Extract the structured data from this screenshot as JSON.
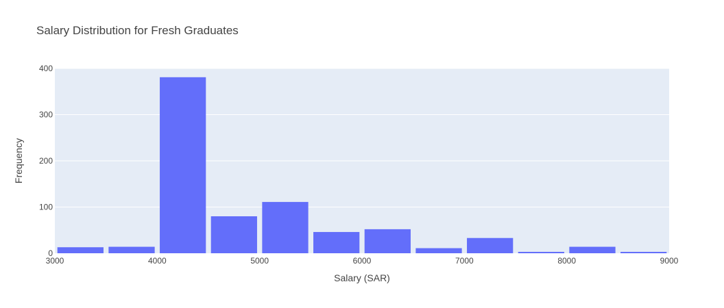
{
  "chart_data": {
    "type": "bar",
    "title": "Salary Distribution for Fresh Graduates",
    "xlabel": "Salary (SAR)",
    "ylabel": "Frequency",
    "bin_width": 500,
    "xlim": [
      3000,
      9000
    ],
    "ylim": [
      0,
      400
    ],
    "x_ticks": [
      3000,
      4000,
      5000,
      6000,
      7000,
      8000,
      9000
    ],
    "y_ticks": [
      0,
      100,
      200,
      300,
      400
    ],
    "bins": [
      {
        "x0": 3000,
        "x1": 3500,
        "value": 13
      },
      {
        "x0": 3500,
        "x1": 4000,
        "value": 14
      },
      {
        "x0": 4000,
        "x1": 4500,
        "value": 381
      },
      {
        "x0": 4500,
        "x1": 5000,
        "value": 80
      },
      {
        "x0": 5000,
        "x1": 5500,
        "value": 111
      },
      {
        "x0": 5500,
        "x1": 6000,
        "value": 46
      },
      {
        "x0": 6000,
        "x1": 6500,
        "value": 52
      },
      {
        "x0": 6500,
        "x1": 7000,
        "value": 11
      },
      {
        "x0": 7000,
        "x1": 7500,
        "value": 33
      },
      {
        "x0": 7500,
        "x1": 8000,
        "value": 3
      },
      {
        "x0": 8000,
        "x1": 8500,
        "value": 14
      },
      {
        "x0": 8500,
        "x1": 9000,
        "value": 3
      }
    ],
    "grid": true,
    "colors": {
      "bar": "#636efa",
      "plot_bg": "#e5ecf6",
      "grid": "#ffffff",
      "text": "#444444"
    }
  }
}
